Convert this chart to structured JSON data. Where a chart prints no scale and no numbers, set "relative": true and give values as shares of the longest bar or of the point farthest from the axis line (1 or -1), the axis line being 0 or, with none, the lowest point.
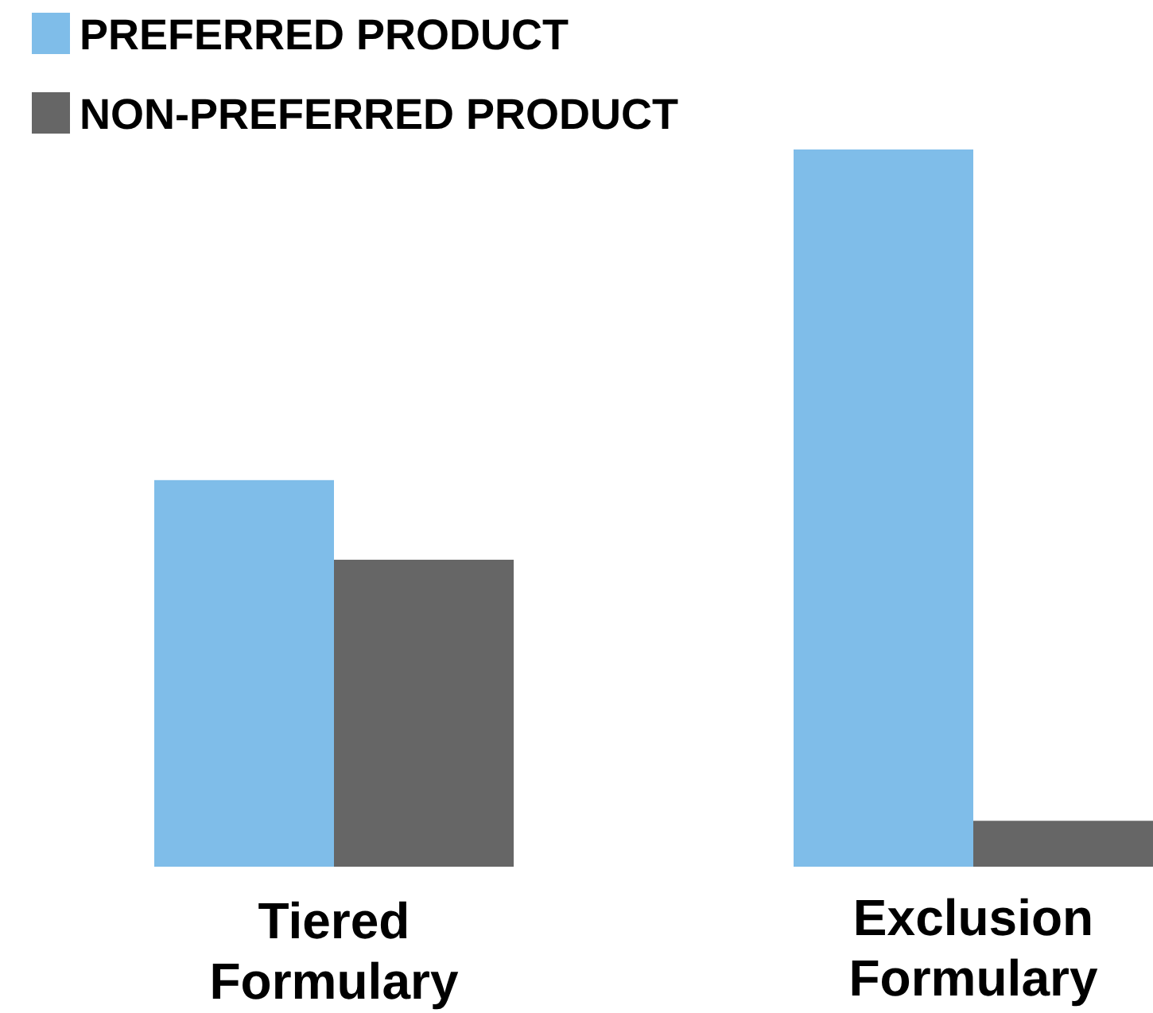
{
  "chart_data": {
    "type": "bar",
    "relative": true,
    "categories": [
      "Tiered Formulary",
      "Exclusion Formulary"
    ],
    "series": [
      {
        "name": "PREFERRED PRODUCT",
        "color": "#7fbde9",
        "values": [
          0.539,
          1
        ]
      },
      {
        "name": "NON-PREFERRED PRODUCT",
        "color": "#666666",
        "values": [
          0.428,
          0.064
        ]
      }
    ],
    "legend": "top left"
  }
}
